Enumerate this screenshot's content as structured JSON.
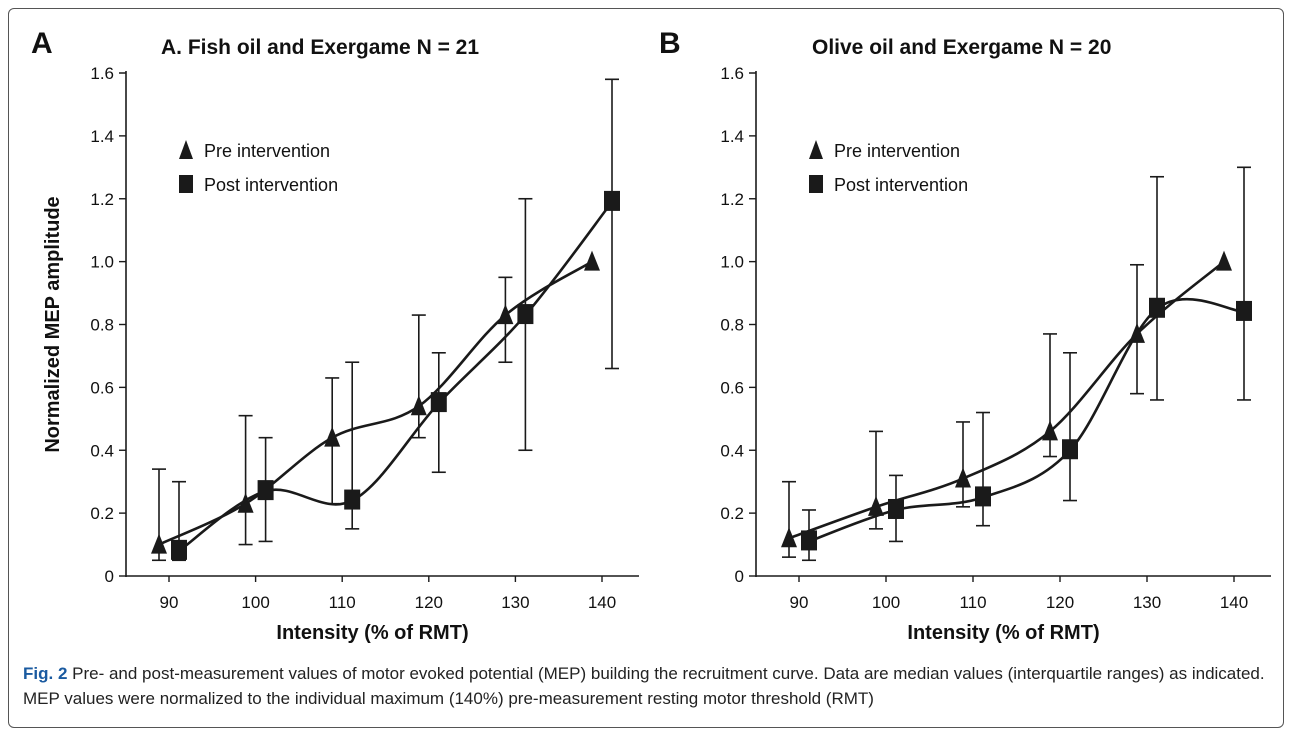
{
  "figure": {
    "caption_label": "Fig. 2",
    "caption_text": " Pre- and post-measurement values of motor evoked potential (MEP) building the recruitment curve. Data are median values (interquartile ranges) as indicated. MEP values were normalized to the individual maximum (140%) pre-measurement resting motor threshold (RMT)"
  },
  "colors": {
    "ink": "#1a1a1a",
    "caption_label": "#1a5aa0"
  },
  "chart_data": [
    {
      "panel": "A",
      "type": "line",
      "title": "A. Fish oil and Exergame N = 21",
      "xlabel": "Intensity (% of RMT)",
      "ylabel": "Normalized MEP amplitude",
      "ylim": [
        0,
        1.6
      ],
      "yticks": [
        "0",
        "0.2",
        "0.4",
        "0.6",
        "0.8",
        "1.0",
        "1.2",
        "1.4",
        "1.6"
      ],
      "categories": [
        "90",
        "100",
        "110",
        "120",
        "130",
        "140"
      ],
      "legend": {
        "position": "top-left",
        "entries": [
          "Pre intervention",
          "Post intervention"
        ]
      },
      "series": [
        {
          "name": "Pre intervention",
          "marker": "triangle",
          "values": [
            0.1,
            0.23,
            0.44,
            0.54,
            0.83,
            1.0
          ],
          "lower": [
            0.05,
            0.1,
            0.23,
            0.44,
            0.68,
            1.0
          ],
          "upper": [
            0.34,
            0.51,
            0.63,
            0.83,
            0.95,
            1.0
          ]
        },
        {
          "name": "Post intervention",
          "marker": "square",
          "values": [
            0.08,
            0.27,
            0.24,
            0.55,
            0.83,
            1.19
          ],
          "lower": [
            0.05,
            0.11,
            0.15,
            0.33,
            0.4,
            0.66
          ],
          "upper": [
            0.3,
            0.44,
            0.68,
            0.71,
            1.2,
            1.58
          ]
        }
      ]
    },
    {
      "panel": "B",
      "type": "line",
      "title": "Olive oil and Exergame N = 20",
      "xlabel": "Intensity (% of RMT)",
      "ylabel": "",
      "ylim": [
        0,
        1.6
      ],
      "yticks": [
        "0",
        "0.2",
        "0.4",
        "0.6",
        "0.8",
        "1.0",
        "1.2",
        "1.4",
        "1.6"
      ],
      "categories": [
        "90",
        "100",
        "110",
        "120",
        "130",
        "140"
      ],
      "legend": {
        "position": "top-left",
        "entries": [
          "Pre intervention",
          "Post intervention"
        ]
      },
      "series": [
        {
          "name": "Pre intervention",
          "marker": "triangle",
          "values": [
            0.12,
            0.22,
            0.31,
            0.46,
            0.77,
            1.0
          ],
          "lower": [
            0.06,
            0.15,
            0.22,
            0.38,
            0.58,
            1.0
          ],
          "upper": [
            0.3,
            0.46,
            0.49,
            0.77,
            0.99,
            1.0
          ]
        },
        {
          "name": "Post intervention",
          "marker": "square",
          "values": [
            0.11,
            0.21,
            0.25,
            0.4,
            0.85,
            0.84
          ],
          "lower": [
            0.05,
            0.11,
            0.16,
            0.24,
            0.56,
            0.56
          ],
          "upper": [
            0.21,
            0.32,
            0.52,
            0.71,
            1.27,
            1.3
          ]
        }
      ]
    }
  ]
}
